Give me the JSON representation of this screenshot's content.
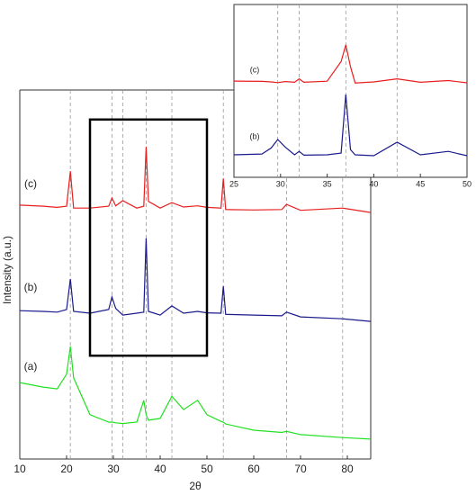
{
  "chart_data": [
    {
      "type": "line",
      "xlabel": "2θ",
      "ylabel": "Intensity (a.u.)",
      "xlim": [
        10,
        85
      ],
      "xticks": [
        10,
        20,
        30,
        40,
        50,
        60,
        70,
        80
      ],
      "ylim": [
        0,
        100
      ],
      "x": [
        10,
        15,
        18,
        20,
        20.8,
        21.5,
        25,
        29,
        29.7,
        30.5,
        32,
        35,
        36.5,
        37,
        37.5,
        40,
        42.5,
        45,
        48,
        50,
        53,
        53.5,
        54,
        60,
        66,
        67,
        70,
        79,
        85
      ],
      "series": [
        {
          "name": "(a)",
          "color": "#22e022",
          "values": [
            20.7,
            19.5,
            19,
            23,
            30.5,
            22,
            12,
            10,
            10,
            9.8,
            9.6,
            10,
            15.9,
            12,
            10.5,
            11,
            17,
            13.4,
            15.9,
            12,
            10.2,
            10,
            9.5,
            7.8,
            7.2,
            7.5,
            6.6,
            5.8,
            5.4
          ]
        },
        {
          "name": "(b)",
          "color": "#1a1a8c",
          "values": [
            40.2,
            40,
            39.8,
            40.5,
            48.8,
            40,
            39.5,
            40.5,
            43.9,
            40.8,
            39,
            39.5,
            39.8,
            59.8,
            40,
            39,
            41.5,
            39.5,
            40,
            39.6,
            39.5,
            46.8,
            39.2,
            39,
            38.8,
            39.8,
            38.5,
            38,
            37.3
          ]
        },
        {
          "name": "(c)",
          "color": "#e81e1e",
          "values": [
            68.8,
            68.5,
            68.2,
            68.5,
            78,
            68,
            68,
            68.5,
            70.7,
            68.6,
            70,
            68,
            68.5,
            84.6,
            69.8,
            68,
            69.5,
            68.3,
            68.6,
            68.2,
            68,
            76,
            67.6,
            67.5,
            67.6,
            69,
            67.4,
            68,
            66.8
          ]
        }
      ],
      "vlines": [
        20.8,
        29.7,
        32,
        37,
        42.5,
        53.5,
        67,
        79
      ],
      "box_x": [
        25,
        50
      ],
      "box_y": [
        28,
        92
      ]
    },
    {
      "type": "line",
      "xlim": [
        25,
        50
      ],
      "xticks": [
        25,
        30,
        35,
        40,
        45,
        50
      ],
      "ylim": [
        0,
        100
      ],
      "x": [
        25,
        28,
        29,
        29.7,
        30.5,
        31.5,
        32,
        32.5,
        35,
        36.5,
        37,
        37.5,
        38,
        40,
        42.5,
        45,
        48,
        50
      ],
      "series": [
        {
          "name": "(b)",
          "color": "#1a1a8c",
          "values": [
            13,
            13.5,
            17,
            21.9,
            17.5,
            13,
            15,
            12.8,
            13,
            14,
            47.9,
            16,
            13,
            12.5,
            20.3,
            13,
            15,
            12.5
          ]
        },
        {
          "name": "(c)",
          "color": "#e81e1e",
          "values": [
            55.7,
            55.5,
            55.2,
            54.8,
            55.4,
            55,
            57,
            55,
            55.6,
            67,
            76.6,
            64,
            54.6,
            55.2,
            57,
            55,
            56,
            54.7
          ]
        }
      ],
      "vlines": [
        29.7,
        32,
        37,
        42.5
      ]
    }
  ]
}
